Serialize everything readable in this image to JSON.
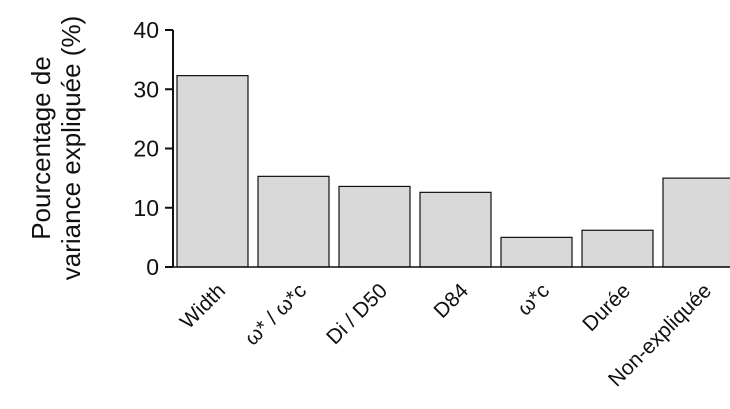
{
  "chart_data": {
    "type": "bar",
    "title": "",
    "xlabel": "",
    "ylabel_lines": [
      "Pourcentage de",
      "variance expliquée (%)"
    ],
    "categories": [
      "Width",
      "ω* / ω*c",
      "Di / D50",
      "D84",
      "ω*c",
      "Durée",
      "Non-expliquée"
    ],
    "values": [
      32.3,
      15.3,
      13.6,
      12.6,
      5.0,
      6.2,
      15.0
    ],
    "ylim": [
      0,
      40
    ],
    "yticks": [
      0,
      10,
      20,
      30,
      40
    ],
    "grid": false,
    "legend": "none",
    "colors": {
      "bar_fill": "#d9d9d9",
      "bar_stroke": "#111111",
      "axis": "#111111"
    }
  }
}
